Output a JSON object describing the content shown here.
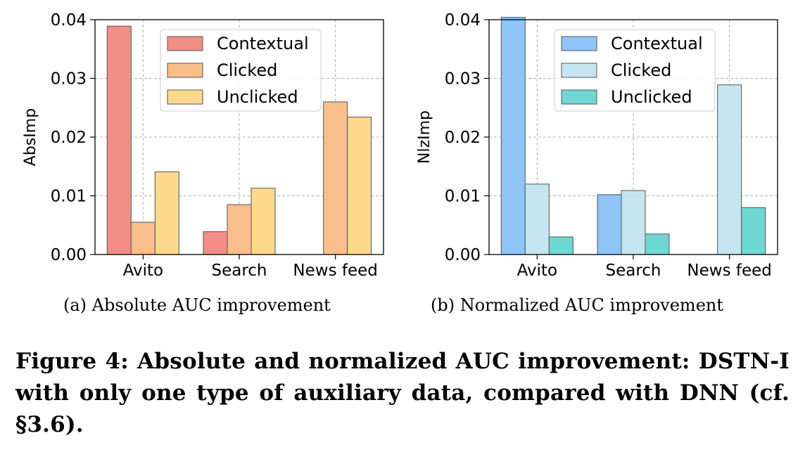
{
  "chart_data": [
    {
      "type": "bar",
      "ylabel": "AbsImp",
      "categories": [
        "Avito",
        "Search",
        "News feed"
      ],
      "ylim": [
        0,
        0.04
      ],
      "yticks": [
        "0.00",
        "0.01",
        "0.02",
        "0.03",
        "0.04"
      ],
      "grid": true,
      "legend_position": "top-center",
      "series": [
        {
          "name": "Contextual",
          "color": "#f28e86",
          "values": [
            0.0389,
            0.0039,
            0.0
          ]
        },
        {
          "name": "Clicked",
          "color": "#f9be8a",
          "values": [
            0.0055,
            0.0085,
            0.026
          ]
        },
        {
          "name": "Unclicked",
          "color": "#fdd98d",
          "values": [
            0.0141,
            0.0113,
            0.0234
          ]
        }
      ]
    },
    {
      "type": "bar",
      "ylabel": "NlzImp",
      "categories": [
        "Avito",
        "Search",
        "News feed"
      ],
      "ylim": [
        0,
        0.04
      ],
      "yticks": [
        "0.00",
        "0.01",
        "0.02",
        "0.03",
        "0.04"
      ],
      "grid": true,
      "legend_position": "top-center",
      "series": [
        {
          "name": "Contextual",
          "color": "#8ec4f6",
          "values": [
            0.0404,
            0.0102,
            0.0
          ]
        },
        {
          "name": "Clicked",
          "color": "#c5e6f0",
          "values": [
            0.012,
            0.0109,
            0.0289
          ]
        },
        {
          "name": "Unclicked",
          "color": "#6ed7d3",
          "values": [
            0.003,
            0.0035,
            0.008
          ]
        }
      ]
    }
  ],
  "captions": {
    "sub_a": "(a)  Absolute AUC improvement",
    "sub_b": "(b)  Normalized AUC improvement",
    "figure": "Figure 4: Absolute and normalized AUC improvement: DSTN-I with only one type of auxiliary data, compared with DNN (cf. §3.6)."
  }
}
